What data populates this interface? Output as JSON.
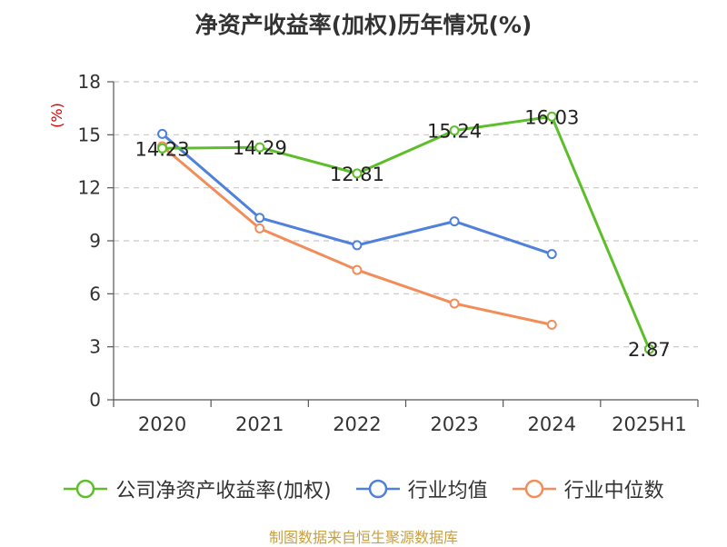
{
  "title": "净资产收益率(加权)历年情况(%)",
  "source": "制图数据来自恒生聚源数据库",
  "chart_data": {
    "type": "line",
    "title": "净资产收益率(加权)历年情况(%)",
    "ylabel": "(%)",
    "xlabel": "",
    "categories": [
      "2020",
      "2021",
      "2022",
      "2023",
      "2024",
      "2025H1"
    ],
    "ylim": [
      0,
      18
    ],
    "yticks": [
      0,
      3,
      6,
      9,
      12,
      15,
      18
    ],
    "grid": true,
    "legend_position": "bottom",
    "series": [
      {
        "name": "公司净资产收益率(加权)",
        "color": "#5cbf2a",
        "values": [
          14.23,
          14.29,
          12.81,
          15.24,
          16.03,
          2.87
        ],
        "labels": [
          "14.23",
          "14.29",
          "12.81",
          "15.24",
          "16.03",
          "2.87"
        ]
      },
      {
        "name": "行业均值",
        "color": "#4e80dc",
        "values": [
          15.05,
          10.3,
          8.75,
          10.1,
          8.25,
          null
        ]
      },
      {
        "name": "行业中位数",
        "color": "#f28d5a",
        "values": [
          14.35,
          9.7,
          7.35,
          5.45,
          4.25,
          null
        ]
      }
    ]
  }
}
